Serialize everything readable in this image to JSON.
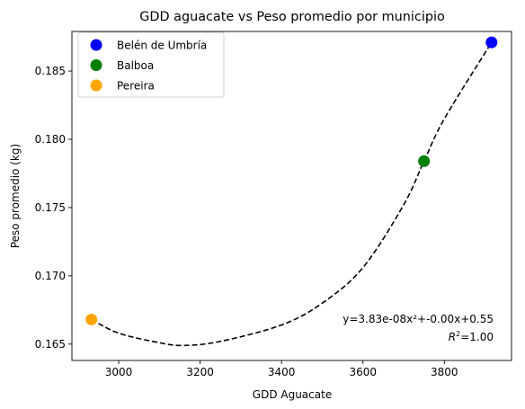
{
  "chart_data": {
    "type": "scatter",
    "title": "GDD aguacate vs Peso promedio por municipio",
    "xlabel": "GDD Aguacate",
    "ylabel": "Peso promedio (kg)",
    "xlim": [
      2885,
      3965
    ],
    "ylim": [
      0.1638,
      0.1879
    ],
    "xticks": [
      3000,
      3200,
      3400,
      3600,
      3800
    ],
    "yticks": [
      0.165,
      0.17,
      0.175,
      0.18,
      0.185
    ],
    "xtick_labels": [
      "3000",
      "3200",
      "3400",
      "3600",
      "3800"
    ],
    "ytick_labels": [
      "0.165",
      "0.170",
      "0.175",
      "0.180",
      "0.185"
    ],
    "grid": false,
    "legend": "top-left",
    "series": [
      {
        "name": "Belén de Umbría",
        "color": "#0000ff",
        "x": 3916,
        "y": 0.1871
      },
      {
        "name": "Balboa",
        "color": "#008000",
        "x": 3750,
        "y": 0.1784
      },
      {
        "name": "Pereira",
        "color": "#ffa500",
        "x": 2933,
        "y": 0.1668
      }
    ],
    "fit": {
      "kind": "quadratic",
      "style": "dashed",
      "color": "#000000",
      "points": [
        [
          2933,
          0.1668
        ],
        [
          3000,
          0.1658
        ],
        [
          3100,
          0.1651
        ],
        [
          3160,
          0.1649
        ],
        [
          3250,
          0.1652
        ],
        [
          3400,
          0.1664
        ],
        [
          3500,
          0.168
        ],
        [
          3600,
          0.1706
        ],
        [
          3700,
          0.1752
        ],
        [
          3750,
          0.1784
        ],
        [
          3800,
          0.1815
        ],
        [
          3916,
          0.1871
        ]
      ]
    },
    "annotation": {
      "equation": "y=3.83e-08x²+-0.00x+0.55",
      "r2_prefix": "R",
      "r2_sup": "2",
      "r2_value": "=1.00"
    }
  }
}
